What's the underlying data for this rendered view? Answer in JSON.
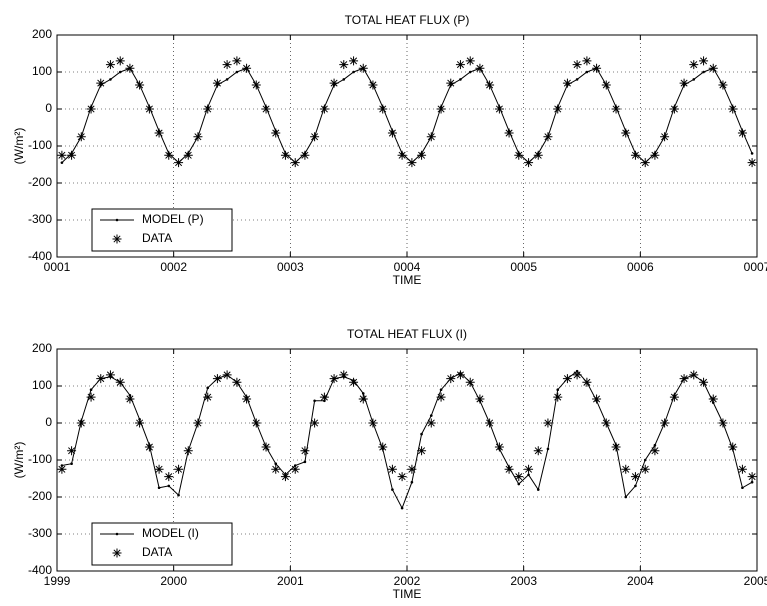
{
  "chart_data": [
    {
      "type": "line",
      "title": "TOTAL HEAT FLUX (P)",
      "x_label": "TIME",
      "y_label": "(W/m²)",
      "x": [
        1.042,
        1.125,
        1.208,
        1.292,
        1.375,
        1.458,
        1.542,
        1.625,
        1.708,
        1.792,
        1.875,
        1.958,
        2.042,
        2.125,
        2.208,
        2.292,
        2.375,
        2.458,
        2.542,
        2.625,
        2.708,
        2.792,
        2.875,
        2.958,
        3.042,
        3.125,
        3.208,
        3.292,
        3.375,
        3.458,
        3.542,
        3.625,
        3.708,
        3.792,
        3.875,
        3.958,
        4.042,
        4.125,
        4.208,
        4.292,
        4.375,
        4.458,
        4.542,
        4.625,
        4.708,
        4.792,
        4.875,
        4.958,
        5.042,
        5.125,
        5.208,
        5.292,
        5.375,
        5.458,
        5.542,
        5.625,
        5.708,
        5.792,
        5.875,
        5.958,
        6.042,
        6.125,
        6.208,
        6.292,
        6.375,
        6.458,
        6.542,
        6.625,
        6.708,
        6.792,
        6.875,
        6.958
      ],
      "series": [
        {
          "name": "MODEL (P)",
          "color": "#000000",
          "marker": "dot",
          "values": [
            -145,
            -120,
            -75,
            5,
            65,
            80,
            100,
            110,
            65,
            5,
            -60,
            -120,
            -145,
            -120,
            -75,
            5,
            65,
            80,
            100,
            110,
            65,
            5,
            -60,
            -120,
            -145,
            -120,
            -75,
            5,
            65,
            80,
            100,
            110,
            65,
            5,
            -60,
            -120,
            -145,
            -120,
            -75,
            5,
            65,
            80,
            100,
            110,
            65,
            5,
            -60,
            -120,
            -145,
            -120,
            -75,
            5,
            65,
            80,
            100,
            110,
            65,
            5,
            -60,
            -120,
            -145,
            -120,
            -75,
            5,
            65,
            80,
            100,
            110,
            65,
            5,
            -60,
            -120
          ]
        },
        {
          "name": "DATA",
          "color": "#000000",
          "marker": "star",
          "values": [
            -125,
            -125,
            -75,
            0,
            70,
            120,
            130,
            110,
            65,
            0,
            -65,
            -125,
            -145,
            -125,
            -75,
            0,
            70,
            120,
            130,
            110,
            65,
            0,
            -65,
            -125,
            -145,
            -125,
            -75,
            0,
            70,
            120,
            130,
            110,
            65,
            0,
            -65,
            -125,
            -145,
            -125,
            -75,
            0,
            70,
            120,
            130,
            110,
            65,
            0,
            -65,
            -125,
            -145,
            -125,
            -75,
            0,
            70,
            120,
            130,
            110,
            65,
            0,
            -65,
            -125,
            -145,
            -125,
            -75,
            0,
            70,
            120,
            130,
            110,
            65,
            0,
            -65,
            -145
          ]
        }
      ],
      "xlim": [
        1,
        7
      ],
      "xticks": [
        {
          "value": 1,
          "label": "0001"
        },
        {
          "value": 2,
          "label": "0002"
        },
        {
          "value": 3,
          "label": "0003"
        },
        {
          "value": 4,
          "label": "0004"
        },
        {
          "value": 5,
          "label": "0005"
        },
        {
          "value": 6,
          "label": "0006"
        },
        {
          "value": 7,
          "label": "0007"
        }
      ],
      "ylim": [
        -400,
        200
      ],
      "yticks": [
        -400,
        -300,
        -200,
        -100,
        0,
        100,
        200
      ],
      "grid": true,
      "legend": "lower left"
    },
    {
      "type": "line",
      "title": "TOTAL HEAT FLUX (I)",
      "x_label": "TIME",
      "y_label": "(W/m²)",
      "x": [
        1999.042,
        1999.125,
        1999.208,
        1999.292,
        1999.375,
        1999.458,
        1999.542,
        1999.625,
        1999.708,
        1999.792,
        1999.875,
        1999.958,
        2000.042,
        2000.125,
        2000.208,
        2000.292,
        2000.375,
        2000.458,
        2000.542,
        2000.625,
        2000.708,
        2000.792,
        2000.875,
        2000.958,
        2001.042,
        2001.125,
        2001.208,
        2001.292,
        2001.375,
        2001.458,
        2001.542,
        2001.625,
        2001.708,
        2001.792,
        2001.875,
        2001.958,
        2002.042,
        2002.125,
        2002.208,
        2002.292,
        2002.375,
        2002.458,
        2002.542,
        2002.625,
        2002.708,
        2002.792,
        2002.875,
        2002.958,
        2003.042,
        2003.125,
        2003.208,
        2003.292,
        2003.375,
        2003.458,
        2003.542,
        2003.625,
        2003.708,
        2003.792,
        2003.875,
        2003.958,
        2004.042,
        2004.125,
        2004.208,
        2004.292,
        2004.375,
        2004.458,
        2004.542,
        2004.625,
        2004.708,
        2004.792,
        2004.875,
        2004.958
      ],
      "series": [
        {
          "name": "MODEL (I)",
          "color": "#000000",
          "marker": "dot",
          "values": [
            -115,
            -110,
            5,
            90,
            120,
            125,
            110,
            75,
            10,
            -60,
            -175,
            -170,
            -195,
            -75,
            0,
            95,
            120,
            130,
            110,
            70,
            0,
            -65,
            -110,
            -140,
            -115,
            -105,
            60,
            60,
            120,
            125,
            115,
            80,
            0,
            -70,
            -180,
            -230,
            -160,
            -30,
            20,
            90,
            120,
            135,
            110,
            60,
            0,
            -70,
            -120,
            -165,
            -140,
            -180,
            -70,
            90,
            120,
            140,
            110,
            60,
            0,
            -60,
            -200,
            -170,
            -100,
            -60,
            0,
            75,
            120,
            130,
            110,
            55,
            0,
            -70,
            -175,
            -160
          ]
        },
        {
          "name": "DATA",
          "color": "#000000",
          "marker": "star",
          "values": [
            -125,
            -75,
            0,
            70,
            120,
            130,
            110,
            65,
            0,
            -65,
            -125,
            -145,
            -125,
            -75,
            0,
            70,
            120,
            130,
            110,
            65,
            0,
            -65,
            -125,
            -145,
            -125,
            -75,
            0,
            70,
            120,
            130,
            110,
            65,
            0,
            -65,
            -125,
            -145,
            -125,
            -75,
            0,
            70,
            120,
            130,
            110,
            65,
            0,
            -65,
            -125,
            -145,
            -125,
            -75,
            0,
            70,
            120,
            130,
            110,
            65,
            0,
            -65,
            -125,
            -145,
            -125,
            -75,
            0,
            70,
            120,
            130,
            110,
            65,
            0,
            -65,
            -125,
            -145
          ]
        }
      ],
      "xlim": [
        1999,
        2005
      ],
      "xticks": [
        1999,
        2000,
        2001,
        2002,
        2003,
        2004,
        2005
      ],
      "ylim": [
        -400,
        200
      ],
      "yticks": [
        -400,
        -300,
        -200,
        -100,
        0,
        100,
        200
      ],
      "grid": true,
      "legend": "lower left"
    }
  ]
}
